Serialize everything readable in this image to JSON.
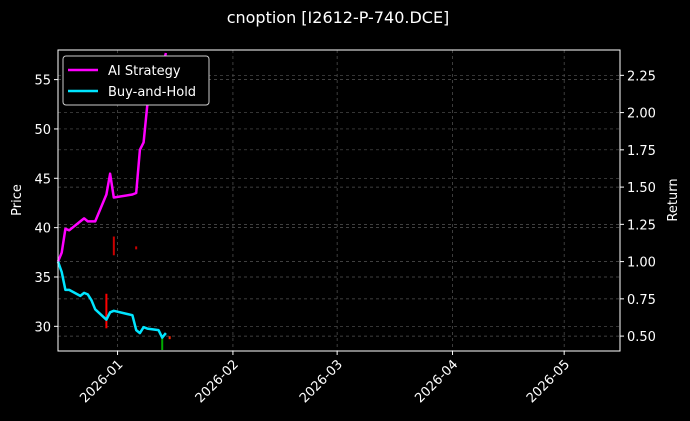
{
  "chart_data": {
    "type": "line",
    "title": "cnoption [I2612-P-740.DCE]",
    "ylabel": "Price",
    "y2label": "Return",
    "x_range": [
      "2025-12-16",
      "2026-05-16"
    ],
    "ylim": [
      27.5,
      58.0
    ],
    "y2lim": [
      0.4,
      2.42
    ],
    "x_ticks": [
      {
        "date": "2026-01-01",
        "label": "2026-01"
      },
      {
        "date": "2026-02-01",
        "label": "2026-02"
      },
      {
        "date": "2026-03-01",
        "label": "2026-03"
      },
      {
        "date": "2026-04-01",
        "label": "2026-04"
      },
      {
        "date": "2026-05-01",
        "label": "2026-05"
      }
    ],
    "y_ticks": [
      30,
      35,
      40,
      45,
      50,
      55
    ],
    "y2_ticks": [
      "0.50",
      "0.75",
      "1.00",
      "1.25",
      "1.50",
      "1.75",
      "2.00",
      "2.25"
    ],
    "grid": true,
    "legend_placement": "top-left",
    "series": [
      {
        "name": "AI Strategy",
        "axis": "return",
        "color": "#ff00ff",
        "points": [
          [
            "2025-12-16",
            1.0
          ],
          [
            "2025-12-17",
            1.06
          ],
          [
            "2025-12-18",
            1.22
          ],
          [
            "2025-12-19",
            1.21
          ],
          [
            "2025-12-22",
            1.27
          ],
          [
            "2025-12-23",
            1.29
          ],
          [
            "2025-12-24",
            1.27
          ],
          [
            "2025-12-25",
            1.27
          ],
          [
            "2025-12-26",
            1.27
          ],
          [
            "2025-12-29",
            1.45
          ],
          [
            "2025-12-30",
            1.59
          ],
          [
            "2025-12-31",
            1.43
          ],
          [
            "2026-01-05",
            1.45
          ],
          [
            "2026-01-06",
            1.46
          ],
          [
            "2026-01-07",
            1.75
          ],
          [
            "2026-01-08",
            1.8
          ],
          [
            "2026-01-09",
            2.05
          ],
          [
            "2026-01-12",
            2.1
          ],
          [
            "2026-01-13",
            2.3
          ],
          [
            "2026-01-14",
            2.4
          ]
        ]
      },
      {
        "name": "Buy-and-Hold",
        "axis": "return",
        "color": "#00e5ff",
        "points": [
          [
            "2025-12-16",
            1.0
          ],
          [
            "2025-12-17",
            0.93
          ],
          [
            "2025-12-18",
            0.81
          ],
          [
            "2025-12-19",
            0.81
          ],
          [
            "2025-12-22",
            0.77
          ],
          [
            "2025-12-23",
            0.79
          ],
          [
            "2025-12-24",
            0.78
          ],
          [
            "2025-12-25",
            0.74
          ],
          [
            "2025-12-26",
            0.68
          ],
          [
            "2025-12-29",
            0.61
          ],
          [
            "2025-12-30",
            0.66
          ],
          [
            "2025-12-31",
            0.67
          ],
          [
            "2026-01-05",
            0.64
          ],
          [
            "2026-01-06",
            0.54
          ],
          [
            "2026-01-07",
            0.52
          ],
          [
            "2026-01-08",
            0.56
          ],
          [
            "2026-01-09",
            0.55
          ],
          [
            "2026-01-12",
            0.54
          ],
          [
            "2026-01-13",
            0.49
          ],
          [
            "2026-01-14",
            0.52
          ]
        ]
      }
    ],
    "price_markers": [
      {
        "date": "2025-12-29",
        "low": 29.8,
        "high": 33.3,
        "color": "#ff0000"
      },
      {
        "date": "2025-12-31",
        "low": 37.2,
        "high": 39.1,
        "color": "#cc0000"
      },
      {
        "date": "2026-01-06",
        "low": 37.8,
        "high": 38.1,
        "color": "#cc0000"
      },
      {
        "date": "2026-01-13",
        "low": 27.6,
        "high": 29.1,
        "color": "#00aa00"
      },
      {
        "date": "2026-01-15",
        "low": 28.7,
        "high": 29.0,
        "color": "#ff2200"
      }
    ],
    "legend": [
      {
        "label": "AI Strategy",
        "color": "#ff00ff"
      },
      {
        "label": "Buy-and-Hold",
        "color": "#00e5ff"
      }
    ]
  }
}
